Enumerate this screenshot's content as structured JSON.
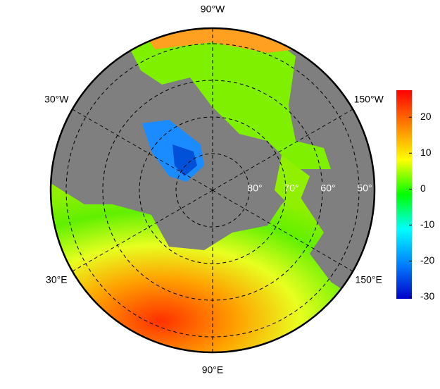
{
  "map": {
    "longitude_labels": [
      {
        "value": -90,
        "label": "90°W"
      },
      {
        "value": -30,
        "label": "30°W"
      },
      {
        "value": -150,
        "label": "150°W"
      },
      {
        "value": 30,
        "label": "30°E"
      },
      {
        "value": 150,
        "label": "150°E"
      },
      {
        "value": 90,
        "label": "90°E"
      }
    ],
    "latitude_labels": [
      {
        "value": 80,
        "label": "80°"
      },
      {
        "value": 70,
        "label": "70°"
      },
      {
        "value": 60,
        "label": "60°"
      },
      {
        "value": 50,
        "label": "50°"
      }
    ]
  },
  "colorbar": {
    "lim": [
      -30.5,
      27.5
    ],
    "ticks": [
      20,
      10,
      0,
      -10,
      -20,
      -30
    ],
    "colors": [
      "#0000c8",
      "#0080ff",
      "#00ffff",
      "#00ff00",
      "#ffff00",
      "#ff8000",
      "#ff0000"
    ]
  }
}
